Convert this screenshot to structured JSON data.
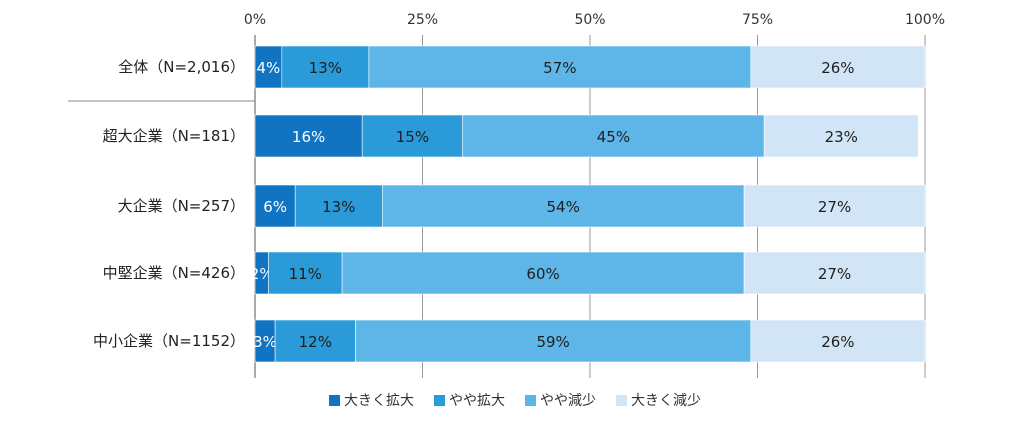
{
  "chart_data": {
    "type": "bar",
    "orientation": "horizontal",
    "stacked": true,
    "categories": [
      "全体（N=2,016）",
      "超大企業（N=181）",
      "大企業（N=257）",
      "中堅企業（N=426）",
      "中小企業（N=1152）"
    ],
    "series": [
      {
        "name": "大きく拡大",
        "values": [
          4,
          16,
          6,
          2,
          3
        ],
        "labels": [
          "4%",
          "16%",
          "6%",
          "2%",
          "3%"
        ],
        "color": "#1074c2"
      },
      {
        "name": "やや拡大",
        "values": [
          13,
          15,
          13,
          11,
          12
        ],
        "labels": [
          "13%",
          "15%",
          "13%",
          "11%",
          "12%"
        ],
        "color": "#2a9ad8"
      },
      {
        "name": "やや減少",
        "values": [
          57,
          45,
          54,
          60,
          59
        ],
        "labels": [
          "57%",
          "45%",
          "54%",
          "60%",
          "59%"
        ],
        "color": "#5db5e8"
      },
      {
        "name": "大きく減少",
        "values": [
          26,
          23,
          27,
          27,
          26
        ],
        "labels": [
          "26%",
          "23%",
          "27%",
          "27%",
          "26%"
        ],
        "color": "#d2e5f6"
      }
    ],
    "x_ticks": [
      "0%",
      "25%",
      "50%",
      "75%",
      "100%"
    ],
    "xlim": [
      0,
      100
    ],
    "grid": true,
    "legend_position": "bottom"
  }
}
